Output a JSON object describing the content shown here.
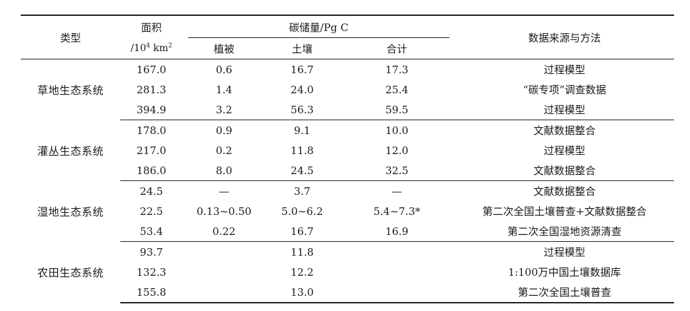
{
  "header": {
    "type_label": "类型",
    "area_label": "面积",
    "area_unit_pre": "/10",
    "area_unit_sup": "4",
    "area_unit_mid": " km",
    "area_unit_sup2": "2",
    "carbon_label": "碳储量/Pg C",
    "vegetation_label": "植被",
    "soil_label": "土壤",
    "total_label": "合计",
    "source_label": "数据来源与方法"
  },
  "groups": [
    {
      "category": "草地生态系统",
      "rows": [
        {
          "area": "167.0",
          "veg": "0.6",
          "soil": "16.7",
          "total": "17.3",
          "source": "过程模型"
        },
        {
          "area": "281.3",
          "veg": "1.4",
          "soil": "24.0",
          "total": "25.4",
          "source": "“碳专项”调查数据"
        },
        {
          "area": "394.9",
          "veg": "3.2",
          "soil": "56.3",
          "total": "59.5",
          "source": "过程模型"
        }
      ]
    },
    {
      "category": "灌丛生态系统",
      "rows": [
        {
          "area": "178.0",
          "veg": "0.9",
          "soil": "9.1",
          "total": "10.0",
          "source": "文献数据整合"
        },
        {
          "area": "217.0",
          "veg": "0.2",
          "soil": "11.8",
          "total": "12.0",
          "source": "过程模型"
        },
        {
          "area": "186.0",
          "veg": "8.0",
          "soil": "24.5",
          "total": "32.5",
          "source": "文献数据整合"
        }
      ]
    },
    {
      "category": "湿地生态系统",
      "rows": [
        {
          "area": "24.5",
          "veg": "—",
          "soil": "3.7",
          "total": "—",
          "source": "文献数据整合"
        },
        {
          "area": "22.5",
          "veg": "0.13~0.50",
          "soil": "5.0~6.2",
          "total": "5.4~7.3*",
          "source": "第二次全国土壤普查+文献数据整合"
        },
        {
          "area": "53.4",
          "veg": "0.22",
          "soil": "16.7",
          "total": "16.9",
          "source": "第二次全国湿地资源清查"
        }
      ]
    },
    {
      "category": "农田生态系统",
      "rows": [
        {
          "area": "93.7",
          "veg": "",
          "soil": "11.8",
          "total": "",
          "source": "过程模型"
        },
        {
          "area": "132.3",
          "veg": "",
          "soil": "12.2",
          "total": "",
          "source": "1:100万中国土壤数据库"
        },
        {
          "area": "155.8",
          "veg": "",
          "soil": "13.0",
          "total": "",
          "source": "第二次全国土壤普查"
        }
      ]
    }
  ]
}
